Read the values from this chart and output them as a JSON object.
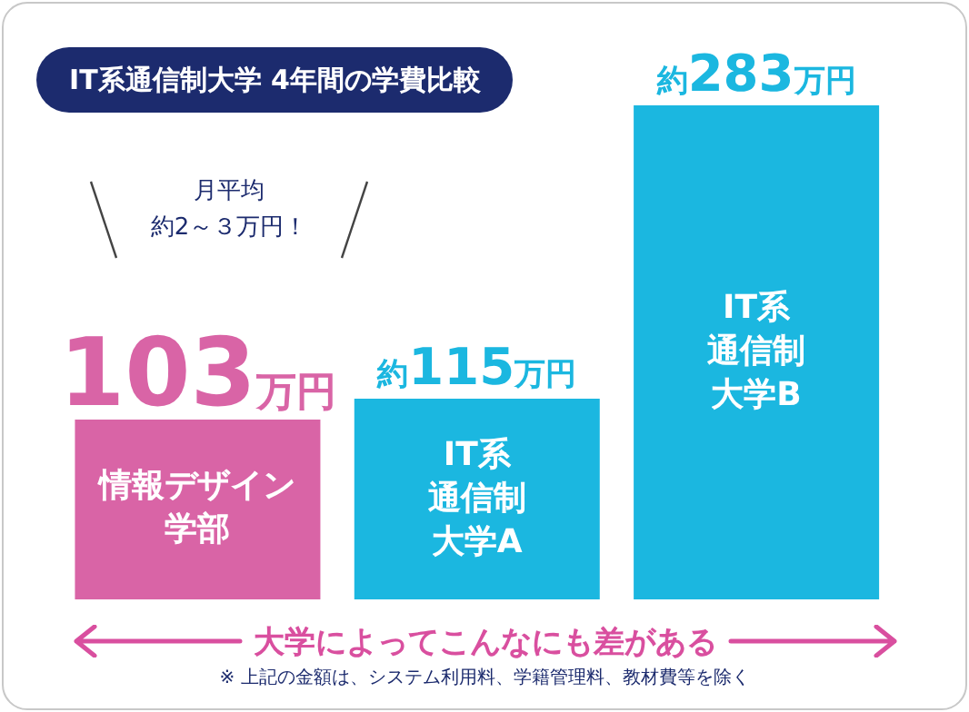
{
  "chart_data": {
    "type": "bar",
    "title": "IT系通信制大学 4年間の学費比較",
    "categories": [
      "情報デザイン学部",
      "IT系通信制大学A",
      "IT系通信制大学B"
    ],
    "values": [
      103,
      115,
      283
    ],
    "colors": [
      "#d964a6",
      "#1bb7e0",
      "#1bb7e0"
    ],
    "value_labels": [
      "103万円",
      "約115万円",
      "約283万円"
    ],
    "annotations": [
      "月平均",
      "約2～３万円！",
      "大学によってこんなにも差がある",
      "※ 上記の金額は、システム利用料、学籍管理料、教材費等を除く"
    ]
  }
}
